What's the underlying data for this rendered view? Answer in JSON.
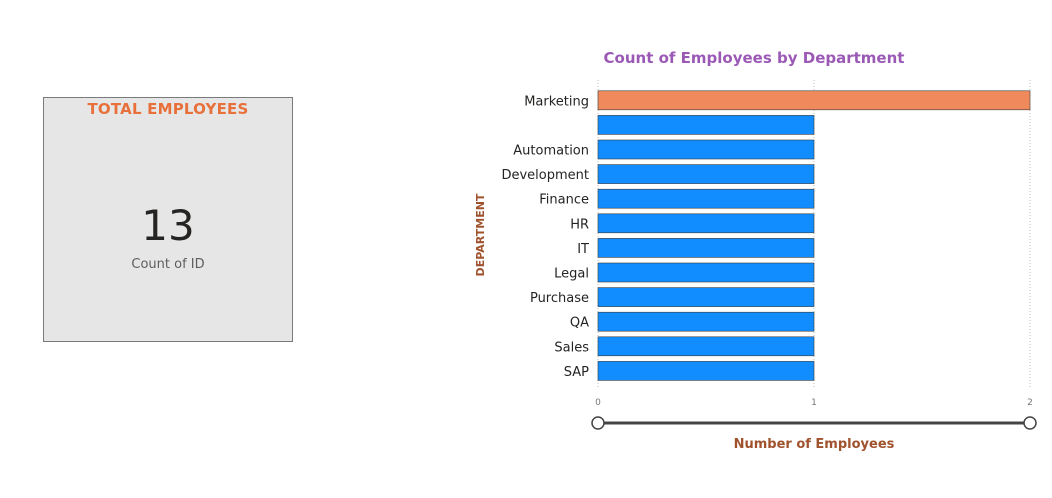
{
  "card": {
    "title": "TOTAL EMPLOYEES",
    "value": "13",
    "label": "Count of ID"
  },
  "chart_data": {
    "type": "bar",
    "orientation": "horizontal",
    "title": "Count of Employees by Department",
    "xlabel": "Number of Employees",
    "ylabel": "DEPARTMENT",
    "categories": [
      "Marketing",
      "",
      "Automation",
      "Development",
      "Finance",
      "HR",
      "IT",
      "Legal",
      "Purchase",
      "QA",
      "Sales",
      "SAP"
    ],
    "values": [
      2,
      1,
      1,
      1,
      1,
      1,
      1,
      1,
      1,
      1,
      1,
      1
    ],
    "xlim": [
      0,
      2
    ],
    "xticks": [
      "0",
      "1",
      "2"
    ],
    "grid": true,
    "colors": {
      "highlight": "#f08a5d",
      "bar": "#118dff",
      "title": "#9b59b6",
      "axis_label": "#a0522d",
      "slider": "#444444"
    },
    "highlight_index": 0
  }
}
